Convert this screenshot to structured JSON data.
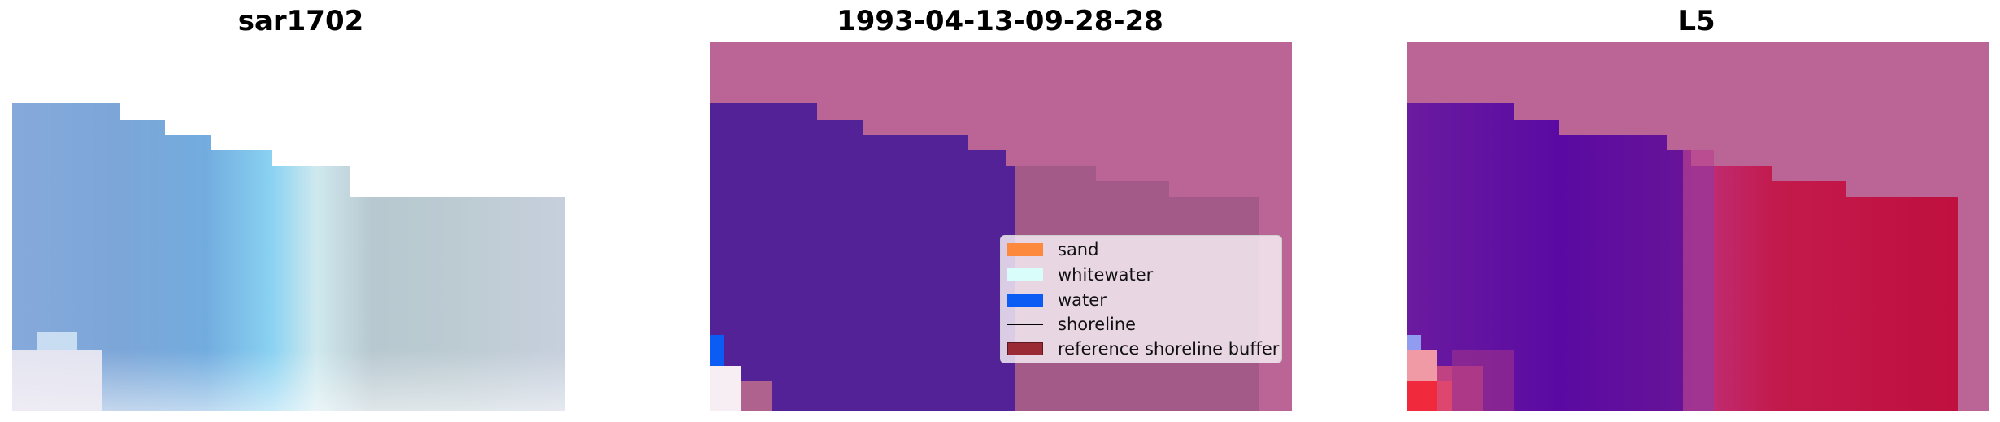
{
  "panels": [
    {
      "title": "sar1702"
    },
    {
      "title": "1993-04-13-09-28-28"
    },
    {
      "title": "L5"
    }
  ],
  "legend": {
    "items": [
      {
        "label": "sand",
        "color": "#fd8a3c"
      },
      {
        "label": "whitewater",
        "color": "#d9fdfb"
      },
      {
        "label": "water",
        "color": "#0b5cf5"
      },
      {
        "label": "shoreline",
        "color": "#000000"
      },
      {
        "label": "reference shoreline buffer",
        "color": "#9a2b35"
      }
    ]
  },
  "colors": {
    "background_pink": "#bb6597",
    "water_purple": "#532296",
    "buffer_mauve": "#a35a88",
    "probability_red": "#c41844",
    "rgb_blue": "#7aa3d6",
    "rgb_gray": "#bfcbd3"
  }
}
